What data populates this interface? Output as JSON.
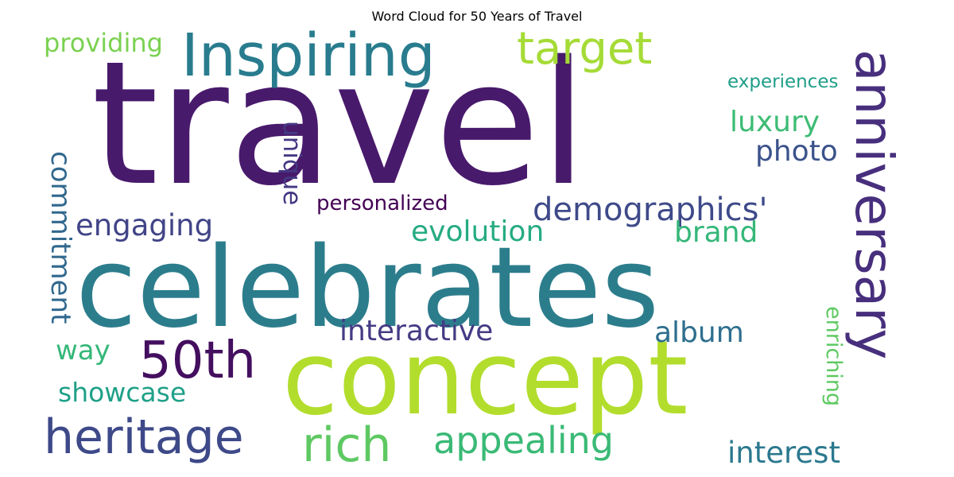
{
  "chart_data": {
    "type": "wordcloud",
    "title": "Word Cloud for 50 Years of Travel",
    "colormap": "viridis",
    "background": "#ffffff",
    "words": [
      {
        "text": "travel",
        "color": "#481a6c",
        "orientation": "horizontal"
      },
      {
        "text": "celebrates",
        "color": "#2c7d8c",
        "orientation": "horizontal"
      },
      {
        "text": "concept",
        "color": "#b2dd2d",
        "orientation": "horizontal"
      },
      {
        "text": "Inspiring",
        "color": "#287c8e",
        "orientation": "horizontal"
      },
      {
        "text": "anniversary",
        "color": "#472f7d",
        "orientation": "vertical"
      },
      {
        "text": "target",
        "color": "#a5db36",
        "orientation": "horizontal"
      },
      {
        "text": "providing",
        "color": "#7ad151",
        "orientation": "horizontal"
      },
      {
        "text": "50th",
        "color": "#440f5f",
        "orientation": "horizontal"
      },
      {
        "text": "heritage",
        "color": "#3e4989",
        "orientation": "horizontal"
      },
      {
        "text": "rich",
        "color": "#5ec962",
        "orientation": "horizontal"
      },
      {
        "text": "appealing",
        "color": "#3aba76",
        "orientation": "horizontal"
      },
      {
        "text": "demographics'",
        "color": "#3e4a89",
        "orientation": "horizontal"
      },
      {
        "text": "engaging",
        "color": "#414487",
        "orientation": "horizontal"
      },
      {
        "text": "evolution",
        "color": "#25ab82",
        "orientation": "horizontal"
      },
      {
        "text": "brand",
        "color": "#35b779",
        "orientation": "horizontal"
      },
      {
        "text": "luxury",
        "color": "#3dbc74",
        "orientation": "horizontal"
      },
      {
        "text": "photo",
        "color": "#3b528b",
        "orientation": "horizontal"
      },
      {
        "text": "experiences",
        "color": "#1f9e89",
        "orientation": "horizontal"
      },
      {
        "text": "unique",
        "color": "#443983",
        "orientation": "vertical"
      },
      {
        "text": "personalized",
        "color": "#440154",
        "orientation": "horizontal"
      },
      {
        "text": "commitment",
        "color": "#31688e",
        "orientation": "vertical"
      },
      {
        "text": "interactive",
        "color": "#443b84",
        "orientation": "horizontal"
      },
      {
        "text": "album",
        "color": "#2e6f8e",
        "orientation": "horizontal"
      },
      {
        "text": "way",
        "color": "#35b779",
        "orientation": "horizontal"
      },
      {
        "text": "showcase",
        "color": "#1fa088",
        "orientation": "horizontal"
      },
      {
        "text": "enriching",
        "color": "#5ec962",
        "orientation": "vertical"
      },
      {
        "text": "interest",
        "color": "#2a788e",
        "orientation": "horizontal"
      }
    ]
  }
}
